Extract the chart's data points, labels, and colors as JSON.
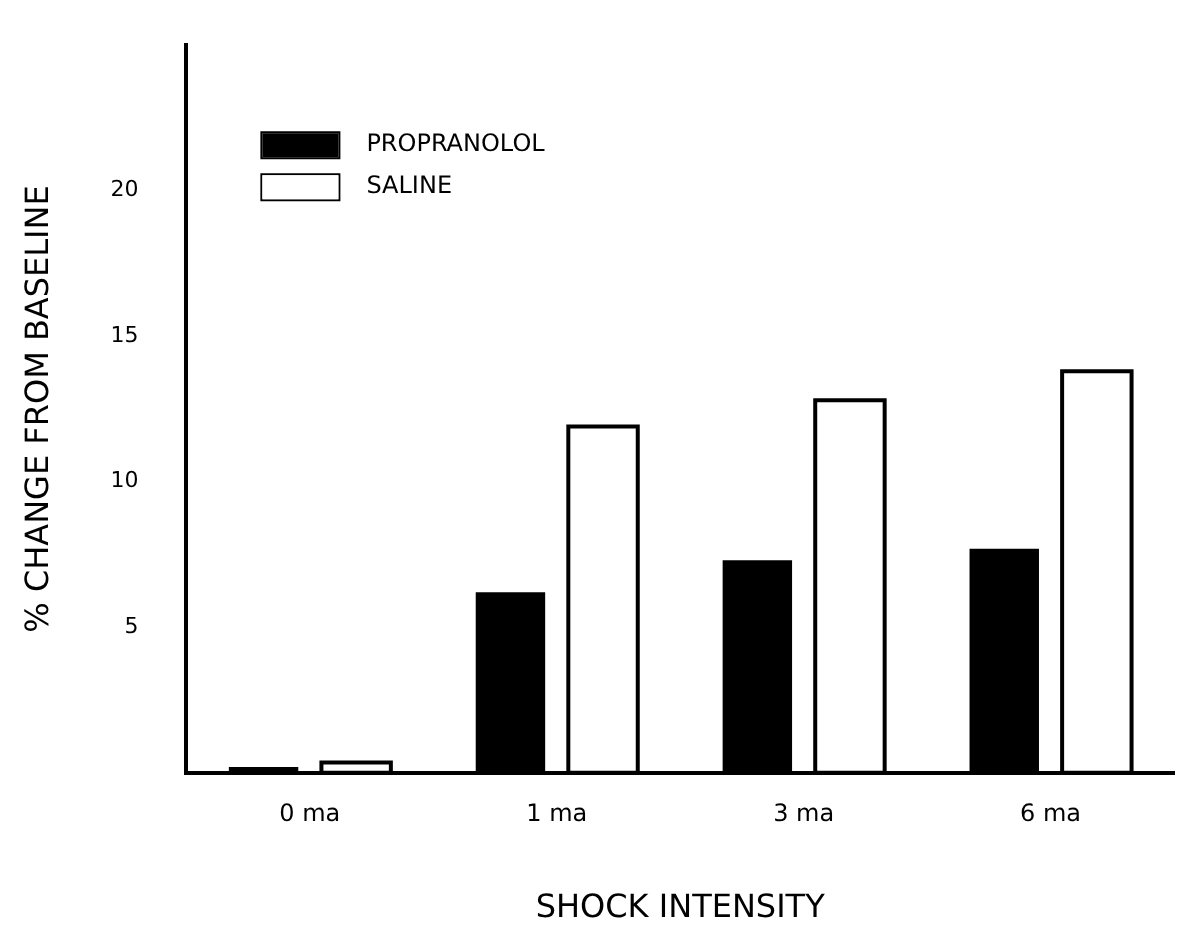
{
  "chart_data": {
    "type": "bar",
    "xlabel": "SHOCK INTENSITY",
    "ylabel": "% CHANGE FROM BASELINE",
    "categories": [
      "0 ma",
      "1 ma",
      "3 ma",
      "6 ma"
    ],
    "series": [
      {
        "name": "PROPRANOLOL",
        "color": "#000000",
        "values": [
          0.2,
          6.2,
          7.3,
          7.7
        ]
      },
      {
        "name": "SALINE",
        "color": "#ffffff",
        "values": [
          0.35,
          11.9,
          12.8,
          13.8
        ]
      }
    ],
    "ylim": [
      0,
      25
    ],
    "yticks": [
      5,
      10,
      15,
      20
    ],
    "grid": false,
    "legend": "top left"
  }
}
